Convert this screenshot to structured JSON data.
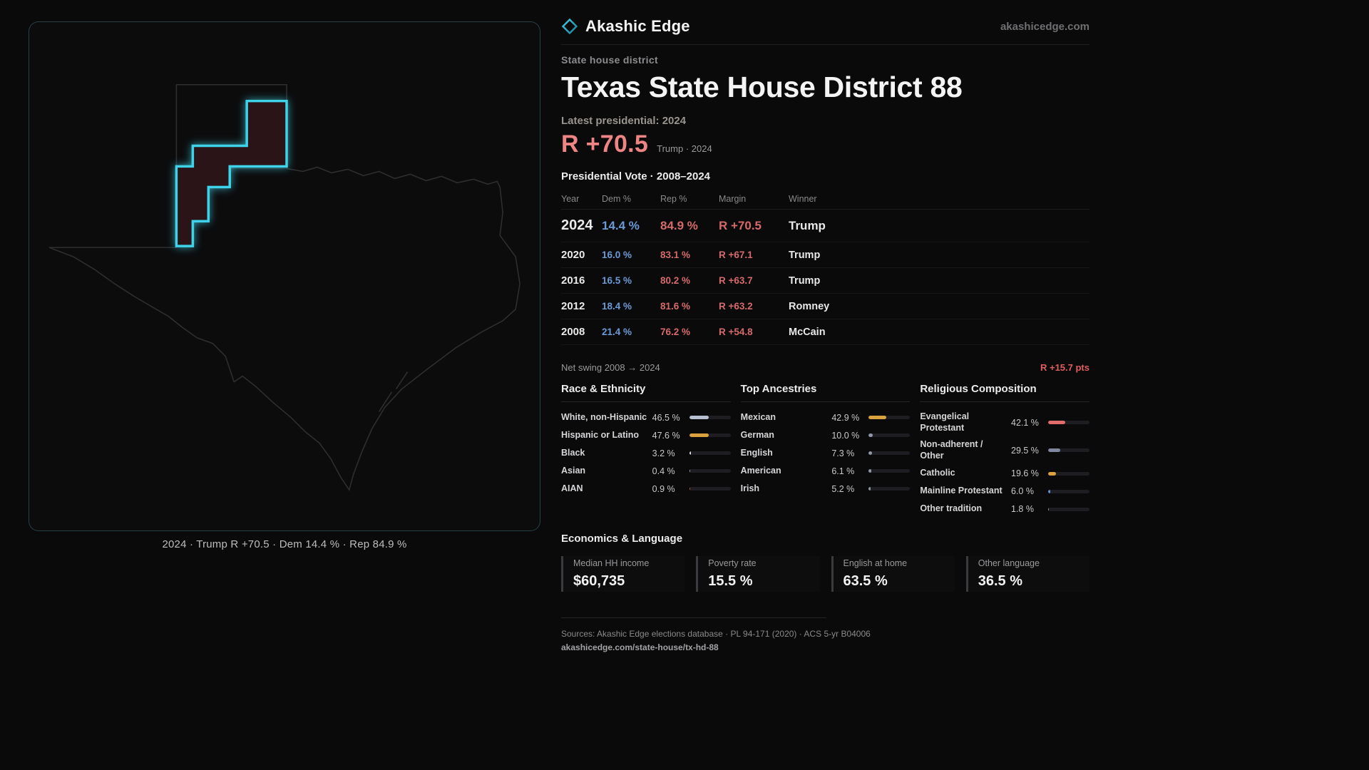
{
  "brand": {
    "name": "Akashic Edge",
    "domain": "akashicedge.com"
  },
  "page": {
    "kicker": "State house district",
    "title": "Texas State House District 88",
    "latest_label": "Latest presidential: 2024",
    "headline_margin": "R +70.5",
    "headline_sub": "Trump · 2024",
    "table_title": "Presidential Vote · 2008–2024"
  },
  "map": {
    "caption": "2024 · Trump R +70.5 · Dem 14.4 % · Rep 84.9 %"
  },
  "vote_table": {
    "headers": [
      "Year",
      "Dem %",
      "Rep %",
      "Margin",
      "Winner"
    ],
    "rows": [
      {
        "year": "2024",
        "dem": "14.4 %",
        "rep": "84.9 %",
        "margin": "R +70.5",
        "winner": "Trump",
        "emphasis": true
      },
      {
        "year": "2020",
        "dem": "16.0 %",
        "rep": "83.1 %",
        "margin": "R +67.1",
        "winner": "Trump",
        "emphasis": false
      },
      {
        "year": "2016",
        "dem": "16.5 %",
        "rep": "80.2 %",
        "margin": "R +63.7",
        "winner": "Trump",
        "emphasis": false
      },
      {
        "year": "2012",
        "dem": "18.4 %",
        "rep": "81.6 %",
        "margin": "R +63.2",
        "winner": "Romney",
        "emphasis": false
      },
      {
        "year": "2008",
        "dem": "21.4 %",
        "rep": "76.2 %",
        "margin": "R +54.8",
        "winner": "McCain",
        "emphasis": false
      }
    ]
  },
  "net_swing": {
    "label": "Net swing 2008 → 2024",
    "value": "R +15.7 pts"
  },
  "demographics": [
    {
      "title": "Race & Ethnicity",
      "rows": [
        {
          "label": "White, non-Hispanic",
          "value": "46.5 %",
          "pct": 46.5,
          "color": "#b7c0d0"
        },
        {
          "label": "Hispanic or Latino",
          "value": "47.6 %",
          "pct": 47.6,
          "color": "#d9a23f"
        },
        {
          "label": "Black",
          "value": "3.2 %",
          "pct": 3.2,
          "color": "#d8dde6"
        },
        {
          "label": "Asian",
          "value": "0.4 %",
          "pct": 0.4,
          "color": "#9aa3b0"
        },
        {
          "label": "AIAN",
          "value": "0.9 %",
          "pct": 0.9,
          "color": "#c4552f"
        }
      ]
    },
    {
      "title": "Top Ancestries",
      "rows": [
        {
          "label": "Mexican",
          "value": "42.9 %",
          "pct": 42.9,
          "color": "#d9a23f"
        },
        {
          "label": "German",
          "value": "10.0 %",
          "pct": 10.0,
          "color": "#8f98a6"
        },
        {
          "label": "English",
          "value": "7.3 %",
          "pct": 7.3,
          "color": "#8f98a6"
        },
        {
          "label": "American",
          "value": "6.1 %",
          "pct": 6.1,
          "color": "#8f98a6"
        },
        {
          "label": "Irish",
          "value": "5.2 %",
          "pct": 5.2,
          "color": "#8f98a6"
        }
      ]
    },
    {
      "title": "Religious Composition",
      "rows": [
        {
          "label": "Evangelical Protestant",
          "value": "42.1 %",
          "pct": 42.1,
          "color": "#e06c6c"
        },
        {
          "label": "Non-adherent / Other",
          "value": "29.5 %",
          "pct": 29.5,
          "color": "#7f86a0"
        },
        {
          "label": "Catholic",
          "value": "19.6 %",
          "pct": 19.6,
          "color": "#d9a23f"
        },
        {
          "label": "Mainline Protestant",
          "value": "6.0 %",
          "pct": 6.0,
          "color": "#5b8fd4"
        },
        {
          "label": "Other tradition",
          "value": "1.8 %",
          "pct": 1.8,
          "color": "#8f98a6"
        }
      ]
    }
  ],
  "economics": {
    "title": "Economics & Language",
    "stats": [
      {
        "label": "Median HH income",
        "value": "$60,735"
      },
      {
        "label": "Poverty rate",
        "value": "15.5 %"
      },
      {
        "label": "English at home",
        "value": "63.5 %"
      },
      {
        "label": "Other language",
        "value": "36.5 %"
      }
    ]
  },
  "footer": {
    "sources": "Sources: Akashic Edge elections database · PL 94-171 (2020) · ACS 5-yr B04006",
    "permalink": "akashicedge.com/state-house/tx-hd-88"
  },
  "colors": {
    "accent_cyan": "#3ed3e8",
    "dem_blue": "#6b9ad6",
    "rep_red": "#d66a6a",
    "headline_red": "#ee8484",
    "bar_orange": "#d9a23f"
  }
}
